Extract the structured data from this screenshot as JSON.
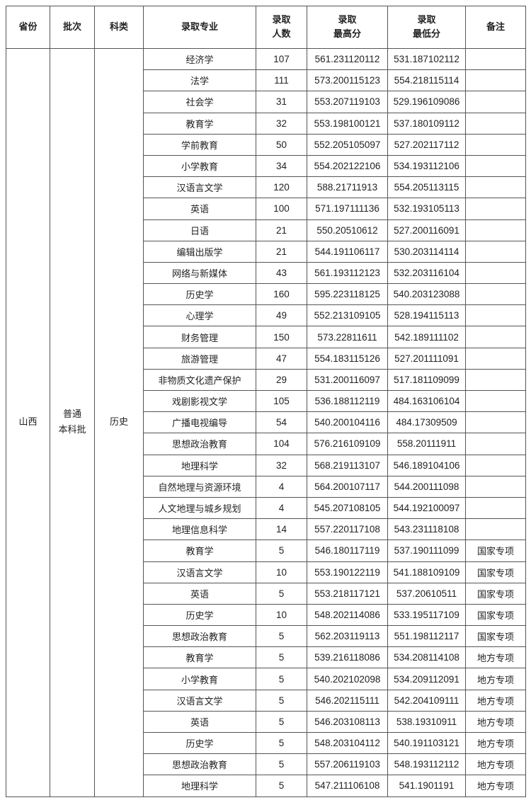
{
  "headers": [
    "省份",
    "批次",
    "科类",
    "录取专业",
    "录取\n人数",
    "录取\n最高分",
    "录取\n最低分",
    "备注"
  ],
  "province": "山西",
  "batch": "普通\n本科批",
  "category": "历史",
  "rows": [
    [
      "经济学",
      "107",
      "561.231120112",
      "531.187102112",
      ""
    ],
    [
      "法学",
      "111",
      "573.200115123",
      "554.218115114",
      ""
    ],
    [
      "社会学",
      "31",
      "553.207119103",
      "529.196109086",
      ""
    ],
    [
      "教育学",
      "32",
      "553.198100121",
      "537.180109112",
      ""
    ],
    [
      "学前教育",
      "50",
      "552.205105097",
      "527.202117112",
      ""
    ],
    [
      "小学教育",
      "34",
      "554.202122106",
      "534.193112106",
      ""
    ],
    [
      "汉语言文学",
      "120",
      "588.21711913",
      "554.205113115",
      ""
    ],
    [
      "英语",
      "100",
      "571.197111136",
      "532.193105113",
      ""
    ],
    [
      "日语",
      "21",
      "550.20510612",
      "527.200116091",
      ""
    ],
    [
      "编辑出版学",
      "21",
      "544.191106117",
      "530.203114114",
      ""
    ],
    [
      "网络与新媒体",
      "43",
      "561.193112123",
      "532.203116104",
      ""
    ],
    [
      "历史学",
      "160",
      "595.223118125",
      "540.203123088",
      ""
    ],
    [
      "心理学",
      "49",
      "552.213109105",
      "528.194115113",
      ""
    ],
    [
      "财务管理",
      "150",
      "573.22811611",
      "542.189111102",
      ""
    ],
    [
      "旅游管理",
      "47",
      "554.183115126",
      "527.201111091",
      ""
    ],
    [
      "非物质文化遗产保护",
      "29",
      "531.200116097",
      "517.181109099",
      ""
    ],
    [
      "戏剧影视文学",
      "105",
      "536.188112119",
      "484.163106104",
      ""
    ],
    [
      "广播电视编导",
      "54",
      "540.200104116",
      "484.17309509",
      ""
    ],
    [
      "思想政治教育",
      "104",
      "576.216109109",
      "558.20111911",
      ""
    ],
    [
      "地理科学",
      "32",
      "568.219113107",
      "546.189104106",
      ""
    ],
    [
      "自然地理与资源环境",
      "4",
      "564.200107117",
      "544.200111098",
      ""
    ],
    [
      "人文地理与城乡规划",
      "4",
      "545.207108105",
      "544.192100097",
      ""
    ],
    [
      "地理信息科学",
      "14",
      "557.220117108",
      "543.231118108",
      ""
    ],
    [
      "教育学",
      "5",
      "546.180117119",
      "537.190111099",
      "国家专项"
    ],
    [
      "汉语言文学",
      "10",
      "553.190122119",
      "541.188109109",
      "国家专项"
    ],
    [
      "英语",
      "5",
      "553.218117121",
      "537.20610511",
      "国家专项"
    ],
    [
      "历史学",
      "10",
      "548.202114086",
      "533.195117109",
      "国家专项"
    ],
    [
      "思想政治教育",
      "5",
      "562.203119113",
      "551.198112117",
      "国家专项"
    ],
    [
      "教育学",
      "5",
      "539.216118086",
      "534.208114108",
      "地方专项"
    ],
    [
      "小学教育",
      "5",
      "540.202102098",
      "534.209112091",
      "地方专项"
    ],
    [
      "汉语言文学",
      "5",
      "546.202115111",
      "542.204109111",
      "地方专项"
    ],
    [
      "英语",
      "5",
      "546.203108113",
      "538.19310911",
      "地方专项"
    ],
    [
      "历史学",
      "5",
      "548.203104112",
      "540.191103121",
      "地方专项"
    ],
    [
      "思想政治教育",
      "5",
      "557.206119103",
      "548.193112112",
      "地方专项"
    ],
    [
      "地理科学",
      "5",
      "547.211106108",
      "541.1901191",
      "地方专项"
    ]
  ]
}
